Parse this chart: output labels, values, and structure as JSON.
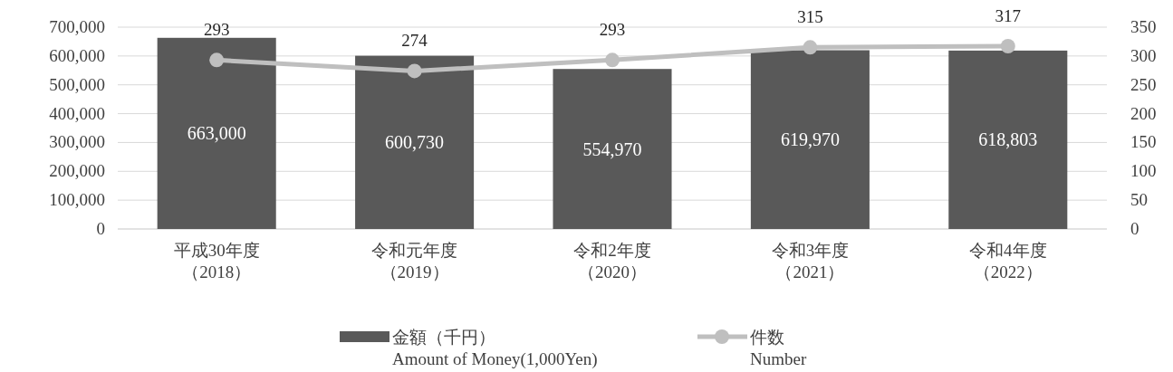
{
  "chart_data": {
    "type": "bar",
    "categories": [
      "平成30年度（2018）",
      "令和元年度（2019）",
      "令和2年度（2020）",
      "令和3年度（2021）",
      "令和4年度（2022）"
    ],
    "series": [
      {
        "name": "金額（千円）\nAmount of Money(1,000Yen)",
        "color": "#595959",
        "values": [
          663000,
          600730,
          554970,
          619970,
          618803
        ],
        "value_labels": [
          "663,000",
          "600,730",
          "554,970",
          "619,970",
          "618,803"
        ]
      },
      {
        "name": "件数\nNumber",
        "type": "line",
        "axis": "y2",
        "color": "#bfbfbf",
        "marker": "circle",
        "values": [
          293,
          274,
          293,
          315,
          317
        ],
        "value_labels": [
          "293",
          "274",
          "293",
          "315",
          "317"
        ]
      }
    ],
    "ylim": [
      0,
      700000
    ],
    "yticks": [
      {
        "value": 0,
        "label": "0"
      },
      {
        "value": 100000,
        "label": "100,000"
      },
      {
        "value": 200000,
        "label": "200,000"
      },
      {
        "value": 300000,
        "label": "300,000"
      },
      {
        "value": 400000,
        "label": "400,000"
      },
      {
        "value": 500000,
        "label": "500,000"
      },
      {
        "value": 600000,
        "label": "600,000"
      },
      {
        "value": 700000,
        "label": "700,000"
      }
    ],
    "y2lim": [
      0,
      350
    ],
    "y2ticks": [
      0,
      50,
      100,
      150,
      200,
      250,
      300,
      350
    ],
    "grid": "y",
    "legend": "bottom"
  }
}
